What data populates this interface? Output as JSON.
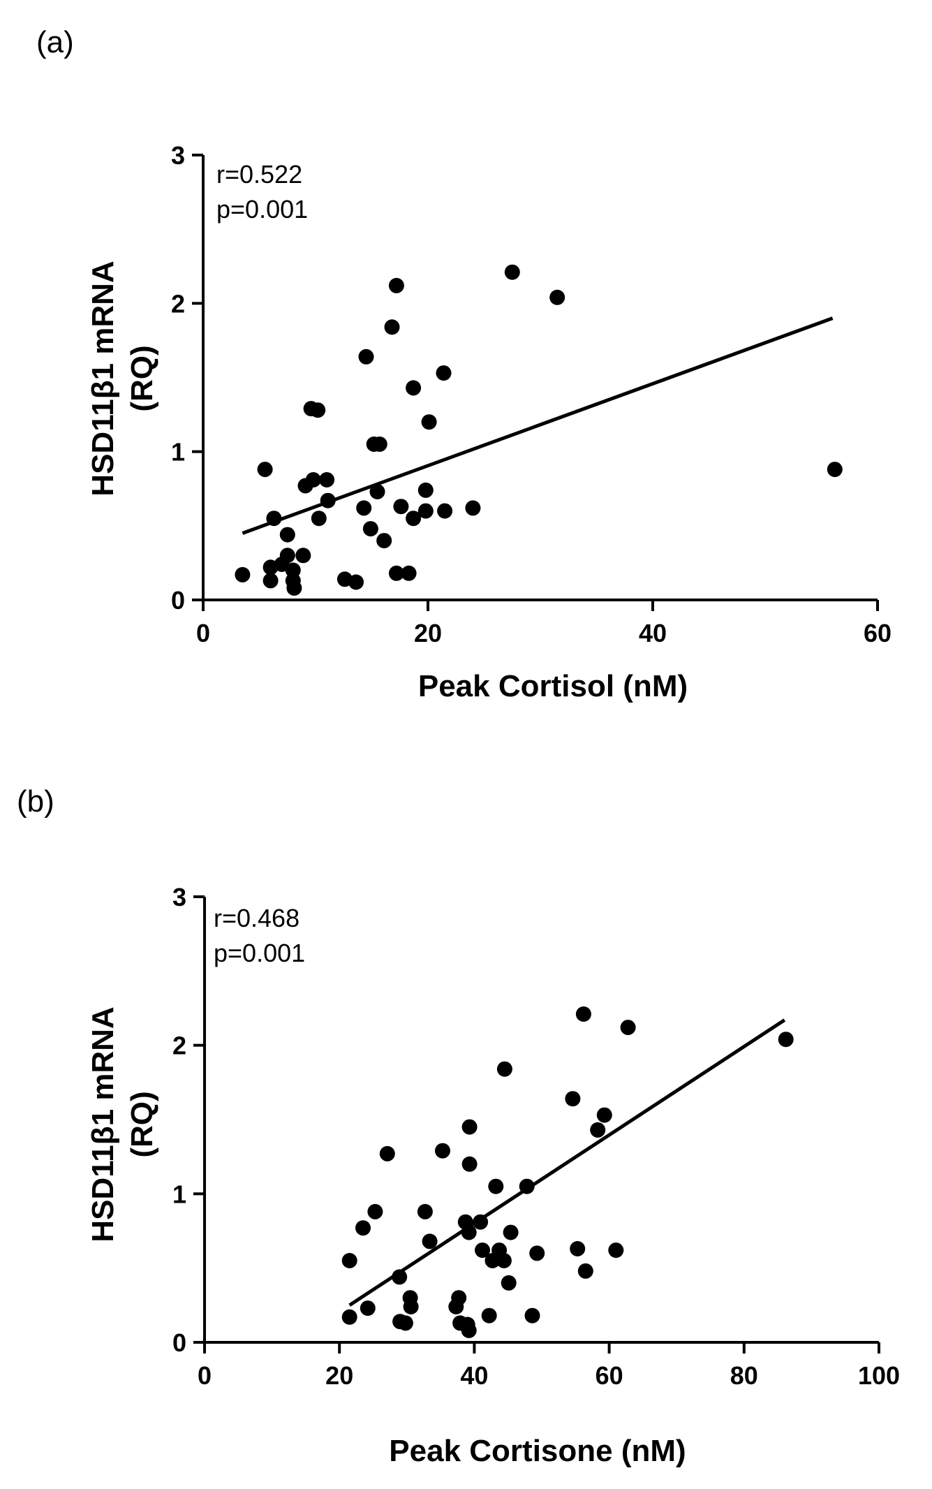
{
  "chart_data": [
    {
      "type": "scatter",
      "panel_label": "(a)",
      "xlabel": "Peak Cortisol (nM)",
      "ylabel_line1": "HSD11β1 mRNA",
      "ylabel_line2": "(RQ)",
      "xlim": [
        0,
        60
      ],
      "ylim": [
        0,
        3
      ],
      "xticks": [
        0,
        20,
        40,
        60
      ],
      "yticks": [
        0,
        1,
        2,
        3
      ],
      "annotation": [
        "r=0.522",
        "p=0.001"
      ],
      "fit_line": {
        "x": [
          3.5,
          56
        ],
        "y": [
          0.45,
          1.9
        ]
      },
      "points": [
        {
          "x": 3.5,
          "y": 0.17
        },
        {
          "x": 5.5,
          "y": 0.88
        },
        {
          "x": 6,
          "y": 0.22
        },
        {
          "x": 6,
          "y": 0.13
        },
        {
          "x": 6.3,
          "y": 0.55
        },
        {
          "x": 7,
          "y": 0.24
        },
        {
          "x": 7.5,
          "y": 0.44
        },
        {
          "x": 7.5,
          "y": 0.3
        },
        {
          "x": 8,
          "y": 0.2
        },
        {
          "x": 8,
          "y": 0.13
        },
        {
          "x": 8.1,
          "y": 0.08
        },
        {
          "x": 8.9,
          "y": 0.3
        },
        {
          "x": 9.1,
          "y": 0.77
        },
        {
          "x": 9.6,
          "y": 1.29
        },
        {
          "x": 9.8,
          "y": 0.81
        },
        {
          "x": 10.2,
          "y": 1.28
        },
        {
          "x": 10.3,
          "y": 0.55
        },
        {
          "x": 11,
          "y": 0.81
        },
        {
          "x": 11.1,
          "y": 0.67
        },
        {
          "x": 12.6,
          "y": 0.14
        },
        {
          "x": 13.6,
          "y": 0.12
        },
        {
          "x": 14.3,
          "y": 0.62
        },
        {
          "x": 14.5,
          "y": 1.64
        },
        {
          "x": 14.9,
          "y": 0.48
        },
        {
          "x": 15.2,
          "y": 1.05
        },
        {
          "x": 15.5,
          "y": 0.73
        },
        {
          "x": 15.7,
          "y": 1.05
        },
        {
          "x": 16.1,
          "y": 0.4
        },
        {
          "x": 16.8,
          "y": 1.84
        },
        {
          "x": 17.2,
          "y": 2.12
        },
        {
          "x": 17.2,
          "y": 0.18
        },
        {
          "x": 17.6,
          "y": 0.63
        },
        {
          "x": 18.3,
          "y": 0.18
        },
        {
          "x": 18.7,
          "y": 1.43
        },
        {
          "x": 18.7,
          "y": 0.55
        },
        {
          "x": 19.8,
          "y": 0.74
        },
        {
          "x": 19.8,
          "y": 0.6
        },
        {
          "x": 20.1,
          "y": 1.2
        },
        {
          "x": 21.4,
          "y": 1.53
        },
        {
          "x": 21.5,
          "y": 0.6
        },
        {
          "x": 24,
          "y": 0.62
        },
        {
          "x": 27.5,
          "y": 2.21
        },
        {
          "x": 31.5,
          "y": 2.04
        },
        {
          "x": 56.2,
          "y": 0.88
        }
      ]
    },
    {
      "type": "scatter",
      "panel_label": "(b)",
      "xlabel": "Peak Cortisone (nM)",
      "ylabel_line1": "HSD11β1 mRNA",
      "ylabel_line2": "(RQ)",
      "xlim": [
        0,
        100
      ],
      "ylim": [
        0,
        3
      ],
      "xticks": [
        0,
        20,
        40,
        60,
        80,
        100
      ],
      "yticks": [
        0,
        1,
        2,
        3
      ],
      "annotation": [
        "r=0.468",
        "p=0.001"
      ],
      "fit_line": {
        "x": [
          21.5,
          86
        ],
        "y": [
          0.25,
          2.17
        ]
      },
      "points": [
        {
          "x": 21.5,
          "y": 0.17
        },
        {
          "x": 21.5,
          "y": 0.55
        },
        {
          "x": 23.5,
          "y": 0.77
        },
        {
          "x": 24.2,
          "y": 0.23
        },
        {
          "x": 25.3,
          "y": 0.88
        },
        {
          "x": 27.1,
          "y": 1.27
        },
        {
          "x": 28.9,
          "y": 0.44
        },
        {
          "x": 29,
          "y": 0.14
        },
        {
          "x": 29.8,
          "y": 0.13
        },
        {
          "x": 30.5,
          "y": 0.3
        },
        {
          "x": 30.6,
          "y": 0.24
        },
        {
          "x": 32.7,
          "y": 0.88
        },
        {
          "x": 33.4,
          "y": 0.68
        },
        {
          "x": 35.3,
          "y": 1.29
        },
        {
          "x": 37.3,
          "y": 0.24
        },
        {
          "x": 37.7,
          "y": 0.3
        },
        {
          "x": 37.9,
          "y": 0.13
        },
        {
          "x": 38.7,
          "y": 0.81
        },
        {
          "x": 39,
          "y": 0.12
        },
        {
          "x": 39.2,
          "y": 0.74
        },
        {
          "x": 39.2,
          "y": 0.08
        },
        {
          "x": 39.3,
          "y": 1.45
        },
        {
          "x": 39.3,
          "y": 1.2
        },
        {
          "x": 40.9,
          "y": 0.81
        },
        {
          "x": 41.2,
          "y": 0.62
        },
        {
          "x": 42.2,
          "y": 0.18
        },
        {
          "x": 42.7,
          "y": 0.55
        },
        {
          "x": 43.2,
          "y": 1.05
        },
        {
          "x": 43.7,
          "y": 0.62
        },
        {
          "x": 44.4,
          "y": 0.55
        },
        {
          "x": 44.5,
          "y": 1.84
        },
        {
          "x": 45.1,
          "y": 0.4
        },
        {
          "x": 45.4,
          "y": 0.74
        },
        {
          "x": 47.8,
          "y": 1.05
        },
        {
          "x": 48.6,
          "y": 0.18
        },
        {
          "x": 49.3,
          "y": 0.6
        },
        {
          "x": 54.6,
          "y": 1.64
        },
        {
          "x": 55.3,
          "y": 0.63
        },
        {
          "x": 56.2,
          "y": 2.21
        },
        {
          "x": 56.5,
          "y": 0.48
        },
        {
          "x": 58.3,
          "y": 1.43
        },
        {
          "x": 59.3,
          "y": 1.53
        },
        {
          "x": 61,
          "y": 0.62
        },
        {
          "x": 62.8,
          "y": 2.12
        },
        {
          "x": 86.2,
          "y": 2.04
        }
      ]
    }
  ]
}
